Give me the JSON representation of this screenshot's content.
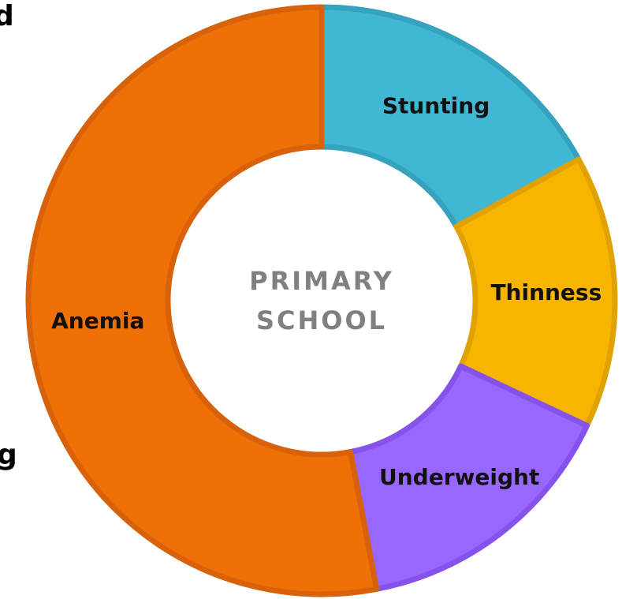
{
  "chart_data": {
    "type": "donut",
    "center_label": [
      "PRIMARY",
      "SCHOOL"
    ],
    "categories": [
      "Stunting",
      "Thinness",
      "Underweight",
      "Anemia"
    ],
    "values": [
      17,
      15,
      15,
      53
    ],
    "colors": [
      "#40b8d3",
      "#f8b500",
      "#9966ff",
      "#f07008"
    ],
    "border_colors": [
      "#35a3bd",
      "#e0a200",
      "#8652ec",
      "#d8620a"
    ],
    "annotations": [
      "d",
      "g"
    ]
  }
}
